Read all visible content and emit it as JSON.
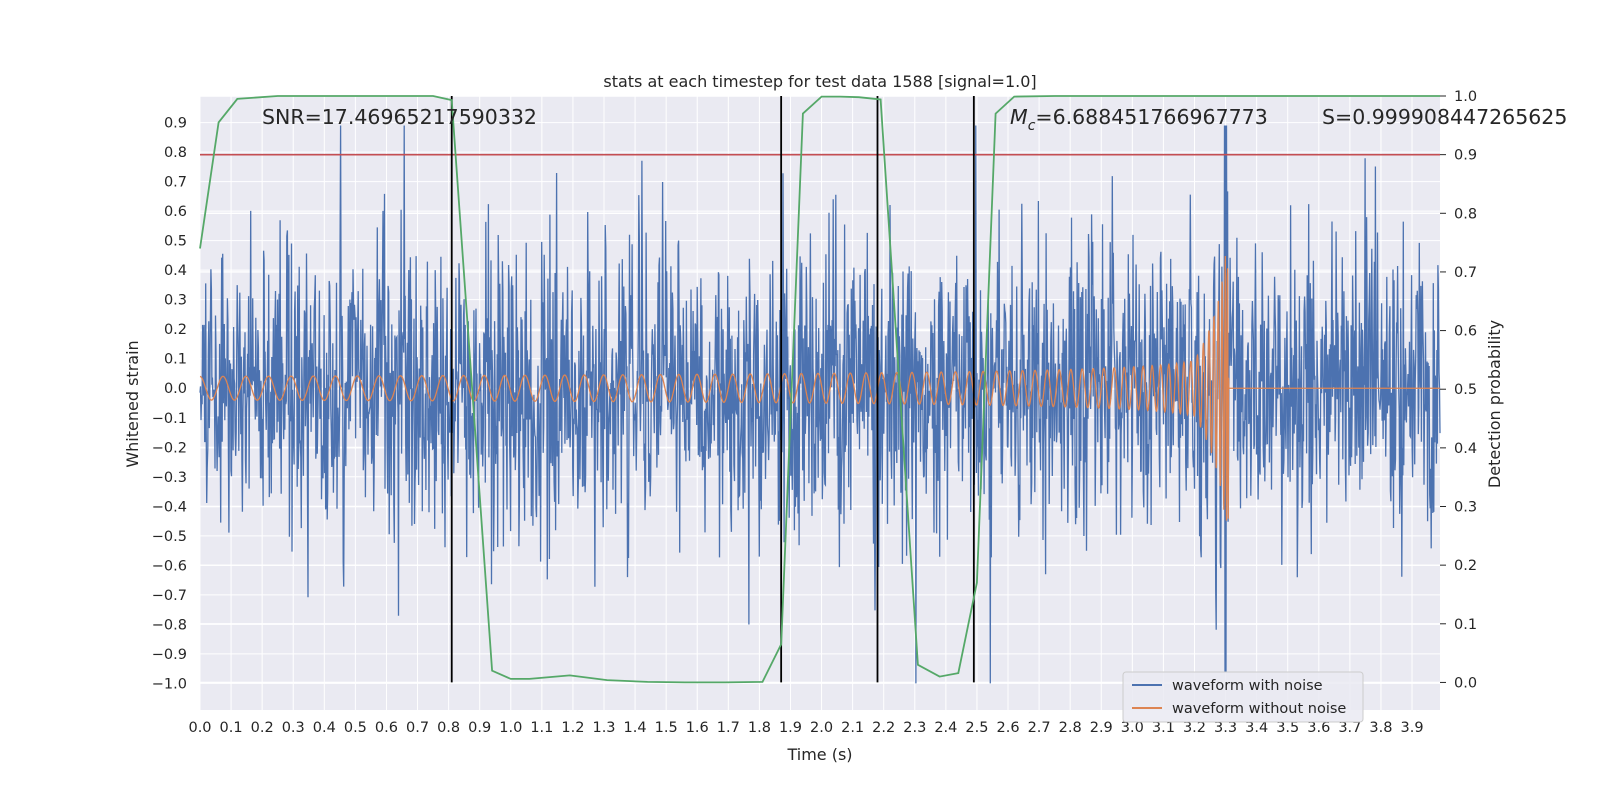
{
  "chart_data": {
    "type": "line",
    "title": "stats at each timestep for test data 1588 [signal=1.0]",
    "xlabel": "Time (s)",
    "ylabel": "Whitened strain",
    "y2label": "Detection probability",
    "xlim": [
      0.0,
      3.99
    ],
    "ylim": [
      -1.09,
      0.99
    ],
    "y2lim": [
      -0.047,
      1.0
    ],
    "x_ticks": [
      "0.0",
      "0.1",
      "0.2",
      "0.3",
      "0.4",
      "0.5",
      "0.6",
      "0.7",
      "0.8",
      "0.9",
      "1.0",
      "1.1",
      "1.2",
      "1.3",
      "1.4",
      "1.5",
      "1.6",
      "1.7",
      "1.8",
      "1.9",
      "2.0",
      "2.1",
      "2.2",
      "2.3",
      "2.4",
      "2.5",
      "2.6",
      "2.7",
      "2.8",
      "2.9",
      "3.0",
      "3.1",
      "3.2",
      "3.3",
      "3.4",
      "3.5",
      "3.6",
      "3.7",
      "3.8",
      "3.9"
    ],
    "y_ticks": [
      "0.9",
      "0.8",
      "0.7",
      "0.6",
      "0.5",
      "0.4",
      "0.3",
      "0.2",
      "0.1",
      "0.0",
      "−0.1",
      "−0.2",
      "−0.3",
      "−0.4",
      "−0.5",
      "−0.6",
      "−0.7",
      "−0.8",
      "−0.9",
      "−1.0"
    ],
    "y2_ticks": [
      "1.0",
      "0.9",
      "0.8",
      "0.7",
      "0.6",
      "0.5",
      "0.4",
      "0.3",
      "0.2",
      "0.1",
      "0.0"
    ],
    "threshold": {
      "axis": "y2",
      "value": 0.9,
      "color": "#c44e52"
    },
    "event_markers": {
      "x": [
        0.81,
        1.87,
        2.18,
        2.49
      ],
      "color": "#000000"
    },
    "series": [
      {
        "name": "waveform with noise",
        "axis": "y",
        "color": "#4c72b0",
        "kind": "whitened noisy strain, amplitude roughly ±0.6 with spikes up to 0.89 and down to −1.0 near t=3.30"
      },
      {
        "name": "waveform without noise",
        "axis": "y",
        "color": "#dd8452",
        "kind": "chirp with amplitude 0.04 at t=0 growing to 0.45 at merger t≈3.31, zero after"
      },
      {
        "name": "detection probability",
        "axis": "y2",
        "color": "#55a868",
        "x": [
          0.0,
          0.06,
          0.12,
          0.25,
          0.5,
          0.75,
          0.81,
          0.94,
          1.0,
          1.06,
          1.19,
          1.31,
          1.44,
          1.56,
          1.69,
          1.81,
          1.87,
          1.94,
          2.0,
          2.06,
          2.12,
          2.19,
          2.31,
          2.38,
          2.44,
          2.5,
          2.56,
          2.62,
          2.75,
          3.0,
          3.5,
          3.99
        ],
        "values": [
          0.74,
          0.955,
          0.995,
          1.0,
          1.0,
          1.0,
          0.993,
          0.02,
          0.006,
          0.006,
          0.012,
          0.004,
          0.001,
          0.0,
          0.0,
          0.001,
          0.065,
          0.97,
          0.999,
          0.999,
          0.998,
          0.994,
          0.03,
          0.01,
          0.016,
          0.17,
          0.97,
          0.999,
          1.0,
          1.0,
          1.0,
          1.0
        ]
      }
    ],
    "legend": {
      "placement": "lower-right",
      "entries": [
        "waveform with noise",
        "waveform without noise"
      ]
    },
    "annotations": {
      "snr": "SNR=17.46965217590332",
      "mc_symbol": "M",
      "mc_sub": "c",
      "mc_value": "=6.688451766967773",
      "s": "S=0.999908447265625"
    },
    "grid": true
  },
  "colors": {
    "plot_bg": "#eaeaf2",
    "grid": "#ffffff",
    "text": "#262626"
  }
}
